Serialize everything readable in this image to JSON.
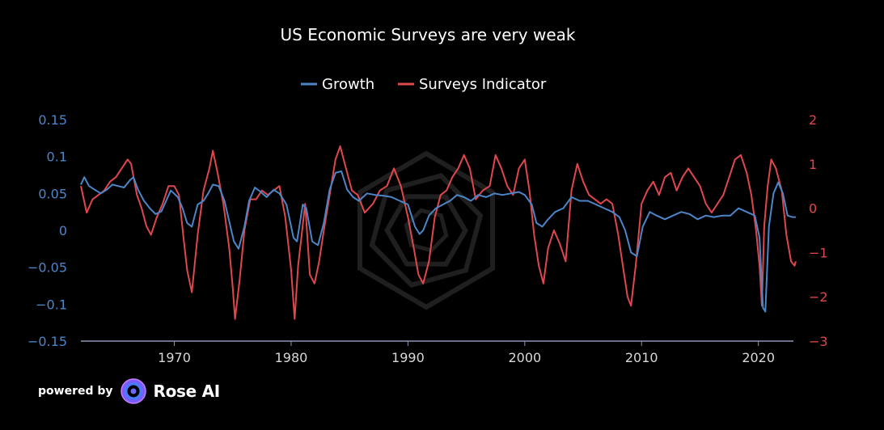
{
  "footer": {
    "powered_by": "powered by",
    "brand": "Rose AI",
    "logo_icon": "rose-ai-logo-icon"
  },
  "chart_data": {
    "type": "line",
    "title": "US Economic Surveys are very weak",
    "legend_position": "top-center",
    "grid": false,
    "xlim": [
      1962,
      2023
    ],
    "x_ticks": [
      "1970",
      "1980",
      "1990",
      "2000",
      "2010",
      "2020"
    ],
    "y_left": {
      "ylim": [
        -0.15,
        0.15
      ],
      "ticks": [
        "0.15",
        "0.1",
        "0.05",
        "0",
        "−0.05",
        "−0.1",
        "−0.15"
      ],
      "color": "#4a86c8"
    },
    "y_right": {
      "ylim": [
        -3,
        2
      ],
      "ticks": [
        "2",
        "1",
        "0",
        "−1",
        "−2",
        "−3"
      ],
      "color": "#e0474c"
    },
    "series": [
      {
        "name": "Growth",
        "axis": "left",
        "color": "#4a86c8",
        "x": [
          1962.0,
          1962.3,
          1962.7,
          1963.2,
          1963.7,
          1964.2,
          1964.7,
          1965.2,
          1965.7,
          1966.2,
          1966.5,
          1966.9,
          1967.4,
          1967.9,
          1968.4,
          1968.9,
          1969.3,
          1969.7,
          1970.3,
          1970.7,
          1971.1,
          1971.5,
          1972.0,
          1972.5,
          1972.9,
          1973.3,
          1973.8,
          1974.3,
          1974.8,
          1975.1,
          1975.5,
          1976.0,
          1976.4,
          1976.9,
          1977.4,
          1977.9,
          1978.5,
          1979.0,
          1979.6,
          1980.2,
          1980.5,
          1981.0,
          1981.3,
          1981.8,
          1982.3,
          1982.8,
          1983.3,
          1983.8,
          1984.3,
          1984.8,
          1985.3,
          1985.8,
          1986.5,
          1987.2,
          1987.9,
          1988.6,
          1989.3,
          1990.0,
          1990.6,
          1991.0,
          1991.3,
          1991.8,
          1992.4,
          1993.0,
          1993.6,
          1994.2,
          1994.8,
          1995.4,
          1996.0,
          1996.7,
          1997.4,
          1998.1,
          1998.8,
          1999.5,
          2000.0,
          2000.6,
          2001.0,
          2001.5,
          2002.0,
          2002.6,
          2003.3,
          2004.0,
          2004.7,
          2005.4,
          2006.1,
          2006.8,
          2007.5,
          2008.1,
          2008.6,
          2009.1,
          2009.6,
          2010.1,
          2010.7,
          2011.3,
          2012.0,
          2012.7,
          2013.4,
          2014.1,
          2014.8,
          2015.5,
          2016.2,
          2016.9,
          2017.6,
          2018.3,
          2019.0,
          2019.7,
          2020.1,
          2020.4,
          2020.6,
          2020.9,
          2021.3,
          2021.7,
          2022.1,
          2022.5,
          2022.9,
          2023.2
        ],
        "y": [
          0.062,
          0.072,
          0.06,
          0.055,
          0.05,
          0.055,
          0.062,
          0.06,
          0.058,
          0.068,
          0.072,
          0.055,
          0.04,
          0.03,
          0.022,
          0.026,
          0.04,
          0.054,
          0.045,
          0.03,
          0.01,
          0.005,
          0.035,
          0.04,
          0.05,
          0.062,
          0.06,
          0.04,
          0.005,
          -0.015,
          -0.025,
          0.005,
          0.04,
          0.058,
          0.052,
          0.045,
          0.055,
          0.05,
          0.035,
          -0.01,
          -0.015,
          0.035,
          0.03,
          -0.015,
          -0.02,
          0.01,
          0.055,
          0.078,
          0.08,
          0.055,
          0.045,
          0.04,
          0.05,
          0.048,
          0.047,
          0.045,
          0.04,
          0.035,
          0.005,
          -0.005,
          0.0,
          0.02,
          0.03,
          0.035,
          0.04,
          0.048,
          0.045,
          0.04,
          0.048,
          0.045,
          0.05,
          0.048,
          0.05,
          0.052,
          0.048,
          0.035,
          0.01,
          0.005,
          0.015,
          0.025,
          0.03,
          0.045,
          0.04,
          0.04,
          0.035,
          0.03,
          0.025,
          0.018,
          0.0,
          -0.03,
          -0.035,
          0.005,
          0.025,
          0.02,
          0.015,
          0.02,
          0.025,
          0.022,
          0.015,
          0.02,
          0.018,
          0.02,
          0.02,
          0.03,
          0.025,
          0.02,
          -0.01,
          -0.105,
          -0.11,
          0.005,
          0.05,
          0.065,
          0.05,
          0.02,
          0.018,
          0.018
        ]
      },
      {
        "name": "Surveys Indicator",
        "axis": "right",
        "color": "#e0474c",
        "x": [
          1962.0,
          1962.5,
          1963.0,
          1963.5,
          1964.0,
          1964.5,
          1965.0,
          1965.5,
          1966.0,
          1966.3,
          1966.8,
          1967.2,
          1967.6,
          1968.0,
          1968.5,
          1969.0,
          1969.5,
          1970.0,
          1970.4,
          1970.8,
          1971.1,
          1971.5,
          1972.0,
          1972.5,
          1973.0,
          1973.3,
          1973.7,
          1974.2,
          1974.7,
          1975.0,
          1975.2,
          1975.6,
          1976.0,
          1976.5,
          1977.0,
          1977.5,
          1978.0,
          1978.5,
          1979.0,
          1979.5,
          1980.0,
          1980.3,
          1980.6,
          1980.9,
          1981.2,
          1981.6,
          1982.0,
          1982.4,
          1982.8,
          1983.3,
          1983.8,
          1984.2,
          1984.7,
          1985.2,
          1985.7,
          1986.3,
          1987.0,
          1987.6,
          1988.2,
          1988.8,
          1989.4,
          1990.0,
          1990.5,
          1990.9,
          1991.3,
          1991.8,
          1992.3,
          1992.8,
          1993.3,
          1993.8,
          1994.3,
          1994.8,
          1995.3,
          1995.8,
          1996.4,
          1997.0,
          1997.5,
          1998.0,
          1998.5,
          1999.0,
          1999.5,
          2000.0,
          2000.4,
          2000.8,
          2001.2,
          2001.6,
          2002.0,
          2002.5,
          2003.0,
          2003.5,
          2004.0,
          2004.5,
          2005.0,
          2005.5,
          2006.0,
          2006.5,
          2007.0,
          2007.5,
          2008.0,
          2008.4,
          2008.8,
          2009.1,
          2009.5,
          2010.0,
          2010.5,
          2011.0,
          2011.5,
          2012.0,
          2012.5,
          2013.0,
          2013.5,
          2014.0,
          2014.5,
          2015.0,
          2015.5,
          2016.0,
          2016.5,
          2017.0,
          2017.5,
          2018.0,
          2018.5,
          2019.0,
          2019.4,
          2019.8,
          2020.1,
          2020.3,
          2020.5,
          2020.8,
          2021.1,
          2021.5,
          2022.0,
          2022.4,
          2022.8,
          2023.1,
          2023.2
        ],
        "y": [
          0.5,
          -0.1,
          0.2,
          0.3,
          0.4,
          0.6,
          0.7,
          0.9,
          1.1,
          1.0,
          0.3,
          0.0,
          -0.4,
          -0.6,
          -0.2,
          0.1,
          0.5,
          0.5,
          0.3,
          -0.7,
          -1.4,
          -1.9,
          -0.6,
          0.4,
          0.9,
          1.3,
          0.8,
          0.1,
          -0.9,
          -1.8,
          -2.5,
          -1.6,
          -0.5,
          0.2,
          0.2,
          0.4,
          0.3,
          0.4,
          0.5,
          -0.2,
          -1.4,
          -2.5,
          -1.3,
          -0.6,
          0.1,
          -1.5,
          -1.7,
          -1.2,
          -0.5,
          0.3,
          1.1,
          1.4,
          0.9,
          0.4,
          0.3,
          -0.1,
          0.1,
          0.4,
          0.5,
          0.9,
          0.5,
          -0.2,
          -0.9,
          -1.5,
          -1.7,
          -1.2,
          -0.2,
          0.3,
          0.4,
          0.7,
          0.9,
          1.2,
          0.9,
          0.2,
          0.4,
          0.5,
          1.2,
          0.9,
          0.5,
          0.3,
          0.9,
          1.1,
          0.4,
          -0.6,
          -1.3,
          -1.7,
          -0.9,
          -0.5,
          -0.8,
          -1.2,
          0.4,
          1.0,
          0.6,
          0.3,
          0.2,
          0.1,
          0.2,
          0.1,
          -0.6,
          -1.3,
          -2.0,
          -2.2,
          -1.3,
          0.1,
          0.4,
          0.6,
          0.3,
          0.7,
          0.8,
          0.4,
          0.7,
          0.9,
          0.7,
          0.5,
          0.1,
          -0.1,
          0.1,
          0.3,
          0.7,
          1.1,
          1.2,
          0.8,
          0.3,
          -0.5,
          -1.3,
          -2.2,
          -0.4,
          0.5,
          1.1,
          0.9,
          0.4,
          -0.6,
          -1.2,
          -1.3,
          -1.2
        ]
      }
    ]
  }
}
